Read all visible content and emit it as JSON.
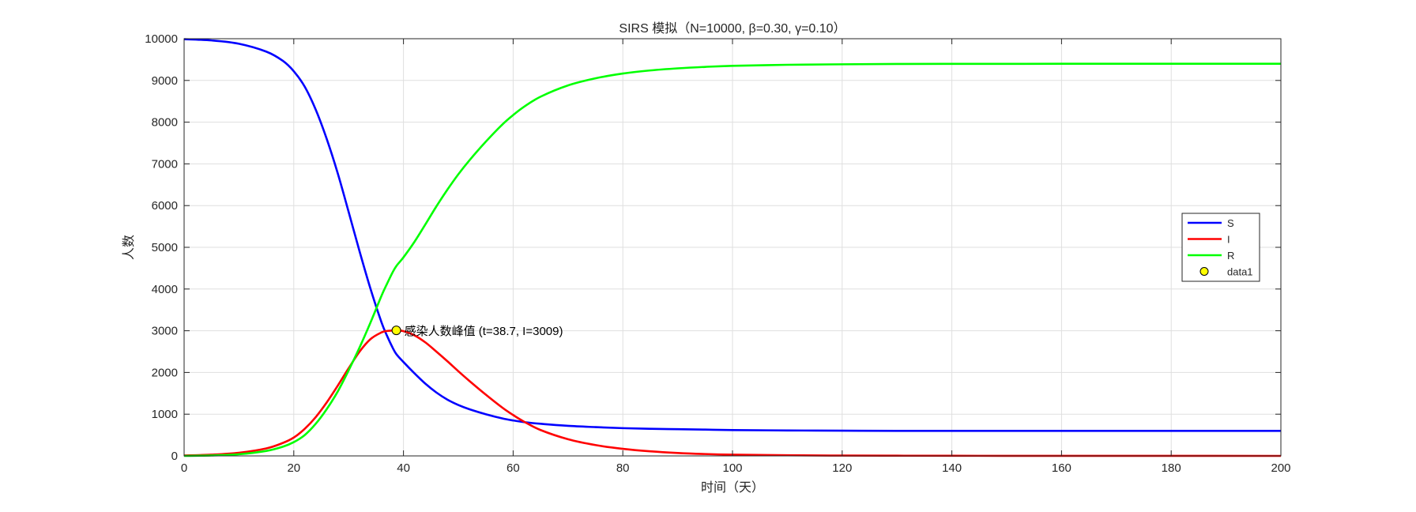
{
  "chart_data": {
    "type": "line",
    "title": "SIRS 模拟（N=10000, β=0.30, γ=0.10）",
    "xlabel": "时间（天）",
    "ylabel": "人数",
    "xlim": [
      0,
      200
    ],
    "ylim": [
      0,
      10000
    ],
    "xticks": [
      0,
      20,
      40,
      60,
      80,
      100,
      120,
      140,
      160,
      180,
      200
    ],
    "yticks": [
      0,
      1000,
      2000,
      3000,
      4000,
      5000,
      6000,
      7000,
      8000,
      9000,
      10000
    ],
    "grid": true,
    "legend": {
      "placement": "right",
      "entries": [
        {
          "label": "S",
          "marker": "line",
          "color": "#0000ff"
        },
        {
          "label": "I",
          "marker": "line",
          "color": "#ff0000"
        },
        {
          "label": "R",
          "marker": "line",
          "color": "#00ff00"
        },
        {
          "label": "data1",
          "marker": "circle",
          "color": "#ffff00"
        }
      ]
    },
    "x": [
      0,
      5,
      10,
      15,
      18,
      20,
      22,
      24,
      26,
      28,
      30,
      32,
      34,
      36,
      37,
      38,
      38.7,
      40,
      42,
      44,
      46,
      48,
      50,
      52,
      55,
      58,
      60,
      62,
      65,
      70,
      75,
      80,
      85,
      90,
      95,
      100,
      110,
      120,
      130,
      140,
      150,
      160,
      180,
      200
    ],
    "series": [
      {
        "name": "S",
        "color": "#0000ff",
        "values": [
          9990,
          9960,
          9880,
          9690,
          9470,
          9220,
          8850,
          8300,
          7600,
          6780,
          5850,
          4900,
          4000,
          3200,
          2880,
          2600,
          2440,
          2250,
          1980,
          1730,
          1520,
          1350,
          1220,
          1120,
          1000,
          900,
          850,
          810,
          770,
          720,
          690,
          665,
          650,
          640,
          630,
          620,
          610,
          605,
          600,
          600,
          600,
          600,
          600,
          600
        ]
      },
      {
        "name": "I",
        "color": "#ff0000",
        "values": [
          10,
          30,
          75,
          180,
          310,
          440,
          650,
          930,
          1280,
          1680,
          2100,
          2500,
          2800,
          2960,
          2995,
          3005,
          3009,
          2990,
          2890,
          2720,
          2500,
          2270,
          2030,
          1800,
          1470,
          1160,
          980,
          820,
          620,
          400,
          260,
          170,
          110,
          70,
          45,
          30,
          15,
          8,
          5,
          3,
          2,
          1,
          1,
          0
        ]
      },
      {
        "name": "R",
        "color": "#00ff00",
        "values": [
          0,
          10,
          40,
          120,
          220,
          330,
          500,
          770,
          1120,
          1540,
          2050,
          2600,
          3200,
          3840,
          4125,
          4395,
          4551,
          4760,
          5130,
          5550,
          5980,
          6380,
          6750,
          7080,
          7530,
          7940,
          8170,
          8370,
          8610,
          8880,
          9050,
          9165,
          9240,
          9290,
          9325,
          9350,
          9375,
          9387,
          9395,
          9397,
          9398,
          9399,
          9399,
          9400
        ]
      }
    ],
    "points": [
      {
        "name": "data1",
        "x": 38.7,
        "y": 3009,
        "color": "#ffff00",
        "edge": "#000000"
      }
    ],
    "annotations": [
      {
        "text": "感染人数峰值 (t=38.7, I=3009)",
        "x": 38.7,
        "y": 3009
      }
    ]
  }
}
